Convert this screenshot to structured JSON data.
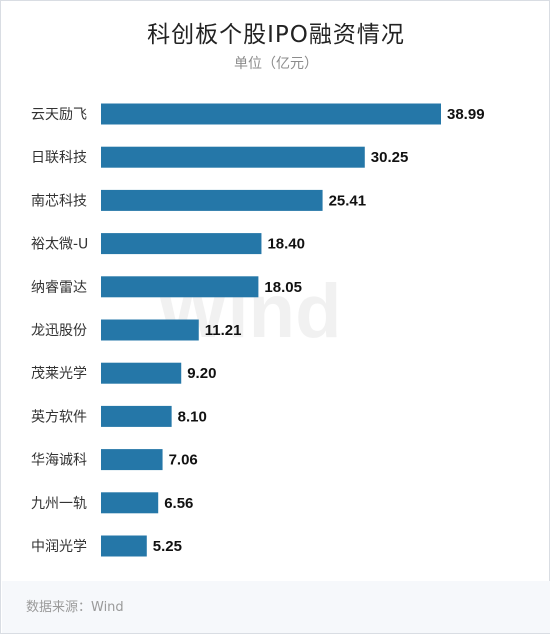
{
  "chart_data": {
    "type": "bar",
    "orientation": "horizontal",
    "title": "科创板个股IPO融资情况",
    "subtitle": "单位（亿元）",
    "categories": [
      "云天励飞",
      "日联科技",
      "南芯科技",
      "裕太微-U",
      "纳睿雷达",
      "龙迅股份",
      "茂莱光学",
      "英方软件",
      "华海诚科",
      "九州一轨",
      "中润光学"
    ],
    "values": [
      38.99,
      30.25,
      25.41,
      18.4,
      18.05,
      11.21,
      9.2,
      8.1,
      7.06,
      6.56,
      5.25
    ],
    "value_labels": [
      "38.99",
      "30.25",
      "25.41",
      "18.40",
      "18.05",
      "11.21",
      "9.20",
      "8.10",
      "7.06",
      "6.56",
      "5.25"
    ],
    "bar_color": "#2577a8",
    "xlim": [
      0,
      38.99
    ],
    "grid": false,
    "legend": "none"
  },
  "watermark": "Wind",
  "source": "数据来源：Wind"
}
